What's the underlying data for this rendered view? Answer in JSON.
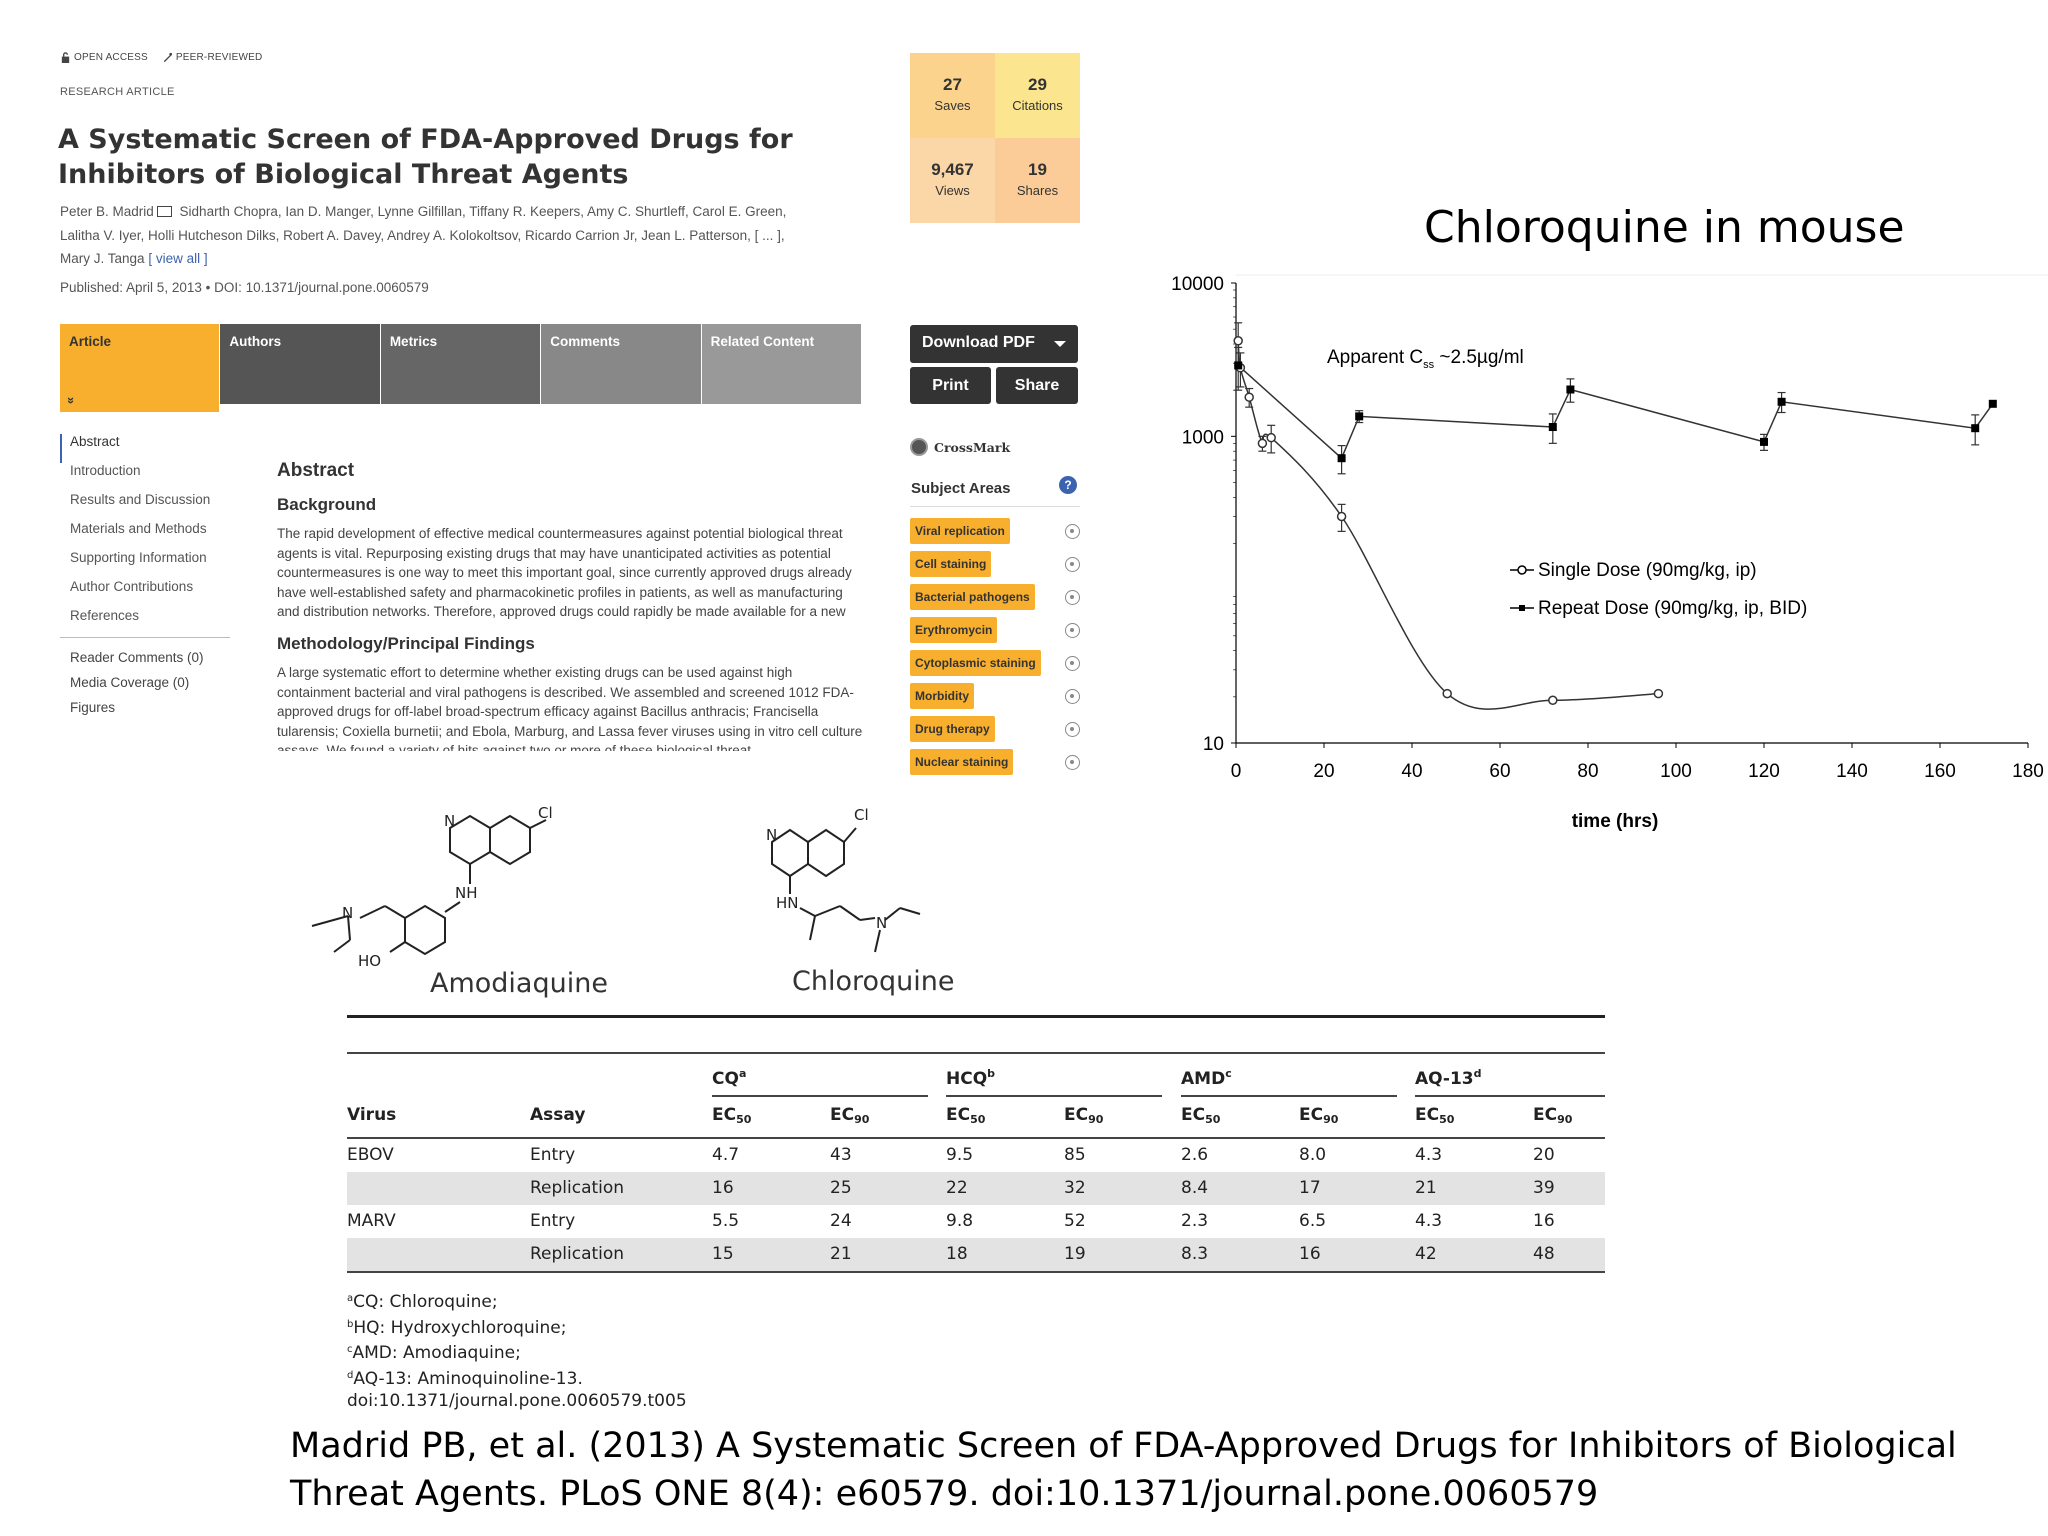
{
  "article": {
    "badges": {
      "open_access": "OPEN ACCESS",
      "peer_reviewed": "PEER-REVIEWED"
    },
    "type": "RESEARCH ARTICLE",
    "title": "A Systematic Screen of FDA-Approved Drugs for Inhibitors of Biological Threat Agents",
    "authors_line1": "Peter B. Madrid",
    "authors_line1_rest": " Sidharth Chopra, Ian D. Manger, Lynne Gilfillan, Tiffany R. Keepers, Amy C. Shurtleff, Carol E. Green,",
    "authors_line2": "Lalitha V. Iyer, Holli Hutcheson Dilks, Robert A. Davey, Andrey A. Kolokoltsov, Ricardo Carrion Jr, Jean L. Patterson, [ ... ],",
    "authors_line3": "Mary J. Tanga",
    "view_all": "[ view all ]",
    "published": "Published: April 5, 2013 • DOI: 10.1371/journal.pone.0060579",
    "tabs": [
      "Article",
      "Authors",
      "Metrics",
      "Comments",
      "Related Content"
    ],
    "tab_chevron": "»",
    "metrics": [
      {
        "num": "27",
        "label": "Saves"
      },
      {
        "num": "29",
        "label": "Citations"
      },
      {
        "num": "9,467",
        "label": "Views"
      },
      {
        "num": "19",
        "label": "Shares"
      }
    ],
    "download_pdf": "Download PDF",
    "print": "Print",
    "share": "Share",
    "crossmark": "CrossMark",
    "subject_areas_title": "Subject Areas",
    "help": "?",
    "subject_areas": [
      "Viral replication",
      "Cell staining",
      "Bacterial pathogens",
      "Erythromycin",
      "Cytoplasmic staining",
      "Morbidity",
      "Drug therapy",
      "Nuclear staining"
    ],
    "toc": [
      "Abstract",
      "Introduction",
      "Results and Discussion",
      "Materials and Methods",
      "Supporting Information",
      "Author Contributions",
      "References"
    ],
    "toc2": [
      "Reader Comments (0)",
      "Media Coverage (0)",
      "Figures"
    ],
    "abstract_title": "Abstract",
    "background_title": "Background",
    "background_text": "The rapid development of effective medical countermeasures against potential biological threat agents is vital. Repurposing existing drugs that may have unanticipated activities as potential countermeasures is one way to meet this important goal, since currently approved drugs already have well-established safety and pharmacokinetic profiles in patients, as well as manufacturing and distribution networks. Therefore, approved drugs could rapidly be made available for a new indication in an emergency.",
    "methods_title": "Methodology/Principal Findings",
    "methods_text": "A large systematic effort to determine whether existing drugs can be used against high containment bacterial and viral pathogens is described. We assembled and screened 1012 FDA-approved drugs for off-label broad-spectrum efficacy against Bacillus anthracis; Francisella tularensis; Coxiella burnetii; and Ebola, Marburg, and Lassa fever viruses using in vitro cell culture assays. We found a variety of hits against two or more of these biological threat"
  },
  "molecules": {
    "amodiaquine": "Amodiaquine",
    "chloroquine": "Chloroquine",
    "atoms": {
      "N": "N",
      "Cl": "Cl",
      "NH": "NH",
      "HN": "HN",
      "HO": "HO"
    }
  },
  "chart_title": "Chloroquine in mouse",
  "chart_data": {
    "type": "line",
    "title": "Chloroquine in mouse",
    "xlabel": "time (hrs)",
    "ylabel": "",
    "xlim": [
      0,
      180
    ],
    "ylim": [
      10,
      10000
    ],
    "y_scale": "log",
    "x_ticks": [
      0,
      20,
      40,
      60,
      80,
      100,
      120,
      140,
      160,
      180
    ],
    "y_ticks": [
      10,
      1000,
      10000
    ],
    "annotation": "Apparent C",
    "annotation_sub": "ss",
    "annotation_rest": " ~2.5µg/ml",
    "legend_position": "right",
    "series": [
      {
        "name": "Single Dose (90mg/kg, ip)",
        "marker": "open-circle",
        "x": [
          0.5,
          1,
          3,
          6,
          8,
          24,
          48,
          72,
          96
        ],
        "y": [
          4200,
          2800,
          1800,
          900,
          980,
          300,
          21,
          19,
          21
        ],
        "err": [
          1300,
          700,
          250,
          100,
          200,
          60,
          0,
          0,
          0
        ]
      },
      {
        "name": "Repeat Dose (90mg/kg, ip, BID)",
        "marker": "filled-square",
        "x": [
          0.5,
          24,
          28,
          72,
          76,
          120,
          124,
          168,
          172
        ],
        "y": [
          2900,
          720,
          1350,
          1150,
          2020,
          920,
          1680,
          1130,
          1630
        ],
        "err": [
          900,
          150,
          120,
          250,
          350,
          110,
          250,
          250,
          0
        ]
      }
    ]
  },
  "table": {
    "groups": [
      {
        "name": "CQ",
        "sup": "a"
      },
      {
        "name": "HCQ",
        "sup": "b"
      },
      {
        "name": "AMD",
        "sup": "c"
      },
      {
        "name": "AQ-13",
        "sup": "d"
      }
    ],
    "col_virus": "Virus",
    "col_assay": "Assay",
    "ec50": "EC",
    "ec50_sub": "50",
    "ec90": "EC",
    "ec90_sub": "90",
    "rows": [
      {
        "virus": "EBOV",
        "assay": "Entry",
        "values": [
          "4.7",
          "43",
          "9.5",
          "85",
          "2.6",
          "8.0",
          "4.3",
          "20"
        ]
      },
      {
        "virus": "",
        "assay": "Replication",
        "values": [
          "16",
          "25",
          "22",
          "32",
          "8.4",
          "17",
          "21",
          "39"
        ]
      },
      {
        "virus": "MARV",
        "assay": "Entry",
        "values": [
          "5.5",
          "24",
          "9.8",
          "52",
          "2.3",
          "6.5",
          "4.3",
          "16"
        ]
      },
      {
        "virus": "",
        "assay": "Replication",
        "values": [
          "15",
          "21",
          "18",
          "19",
          "8.3",
          "16",
          "42",
          "48"
        ]
      }
    ],
    "footnotes": [
      {
        "sup": "a",
        "text": "CQ: Chloroquine;"
      },
      {
        "sup": "b",
        "text": "HQ: Hydroxychloroquine;"
      },
      {
        "sup": "c",
        "text": "AMD: Amodiaquine;"
      },
      {
        "sup": "d",
        "text": "AQ-13: Aminoquinoline-13."
      }
    ],
    "doi": "doi:10.1371/journal.pone.0060579.t005"
  },
  "citation": {
    "line1": "Madrid PB, et al. (2013) A Systematic Screen of FDA-Approved Drugs for Inhibitors of Biological",
    "line2": "Threat Agents. PLoS ONE 8(4): e60579. doi:10.1371/journal.pone.0060579"
  }
}
